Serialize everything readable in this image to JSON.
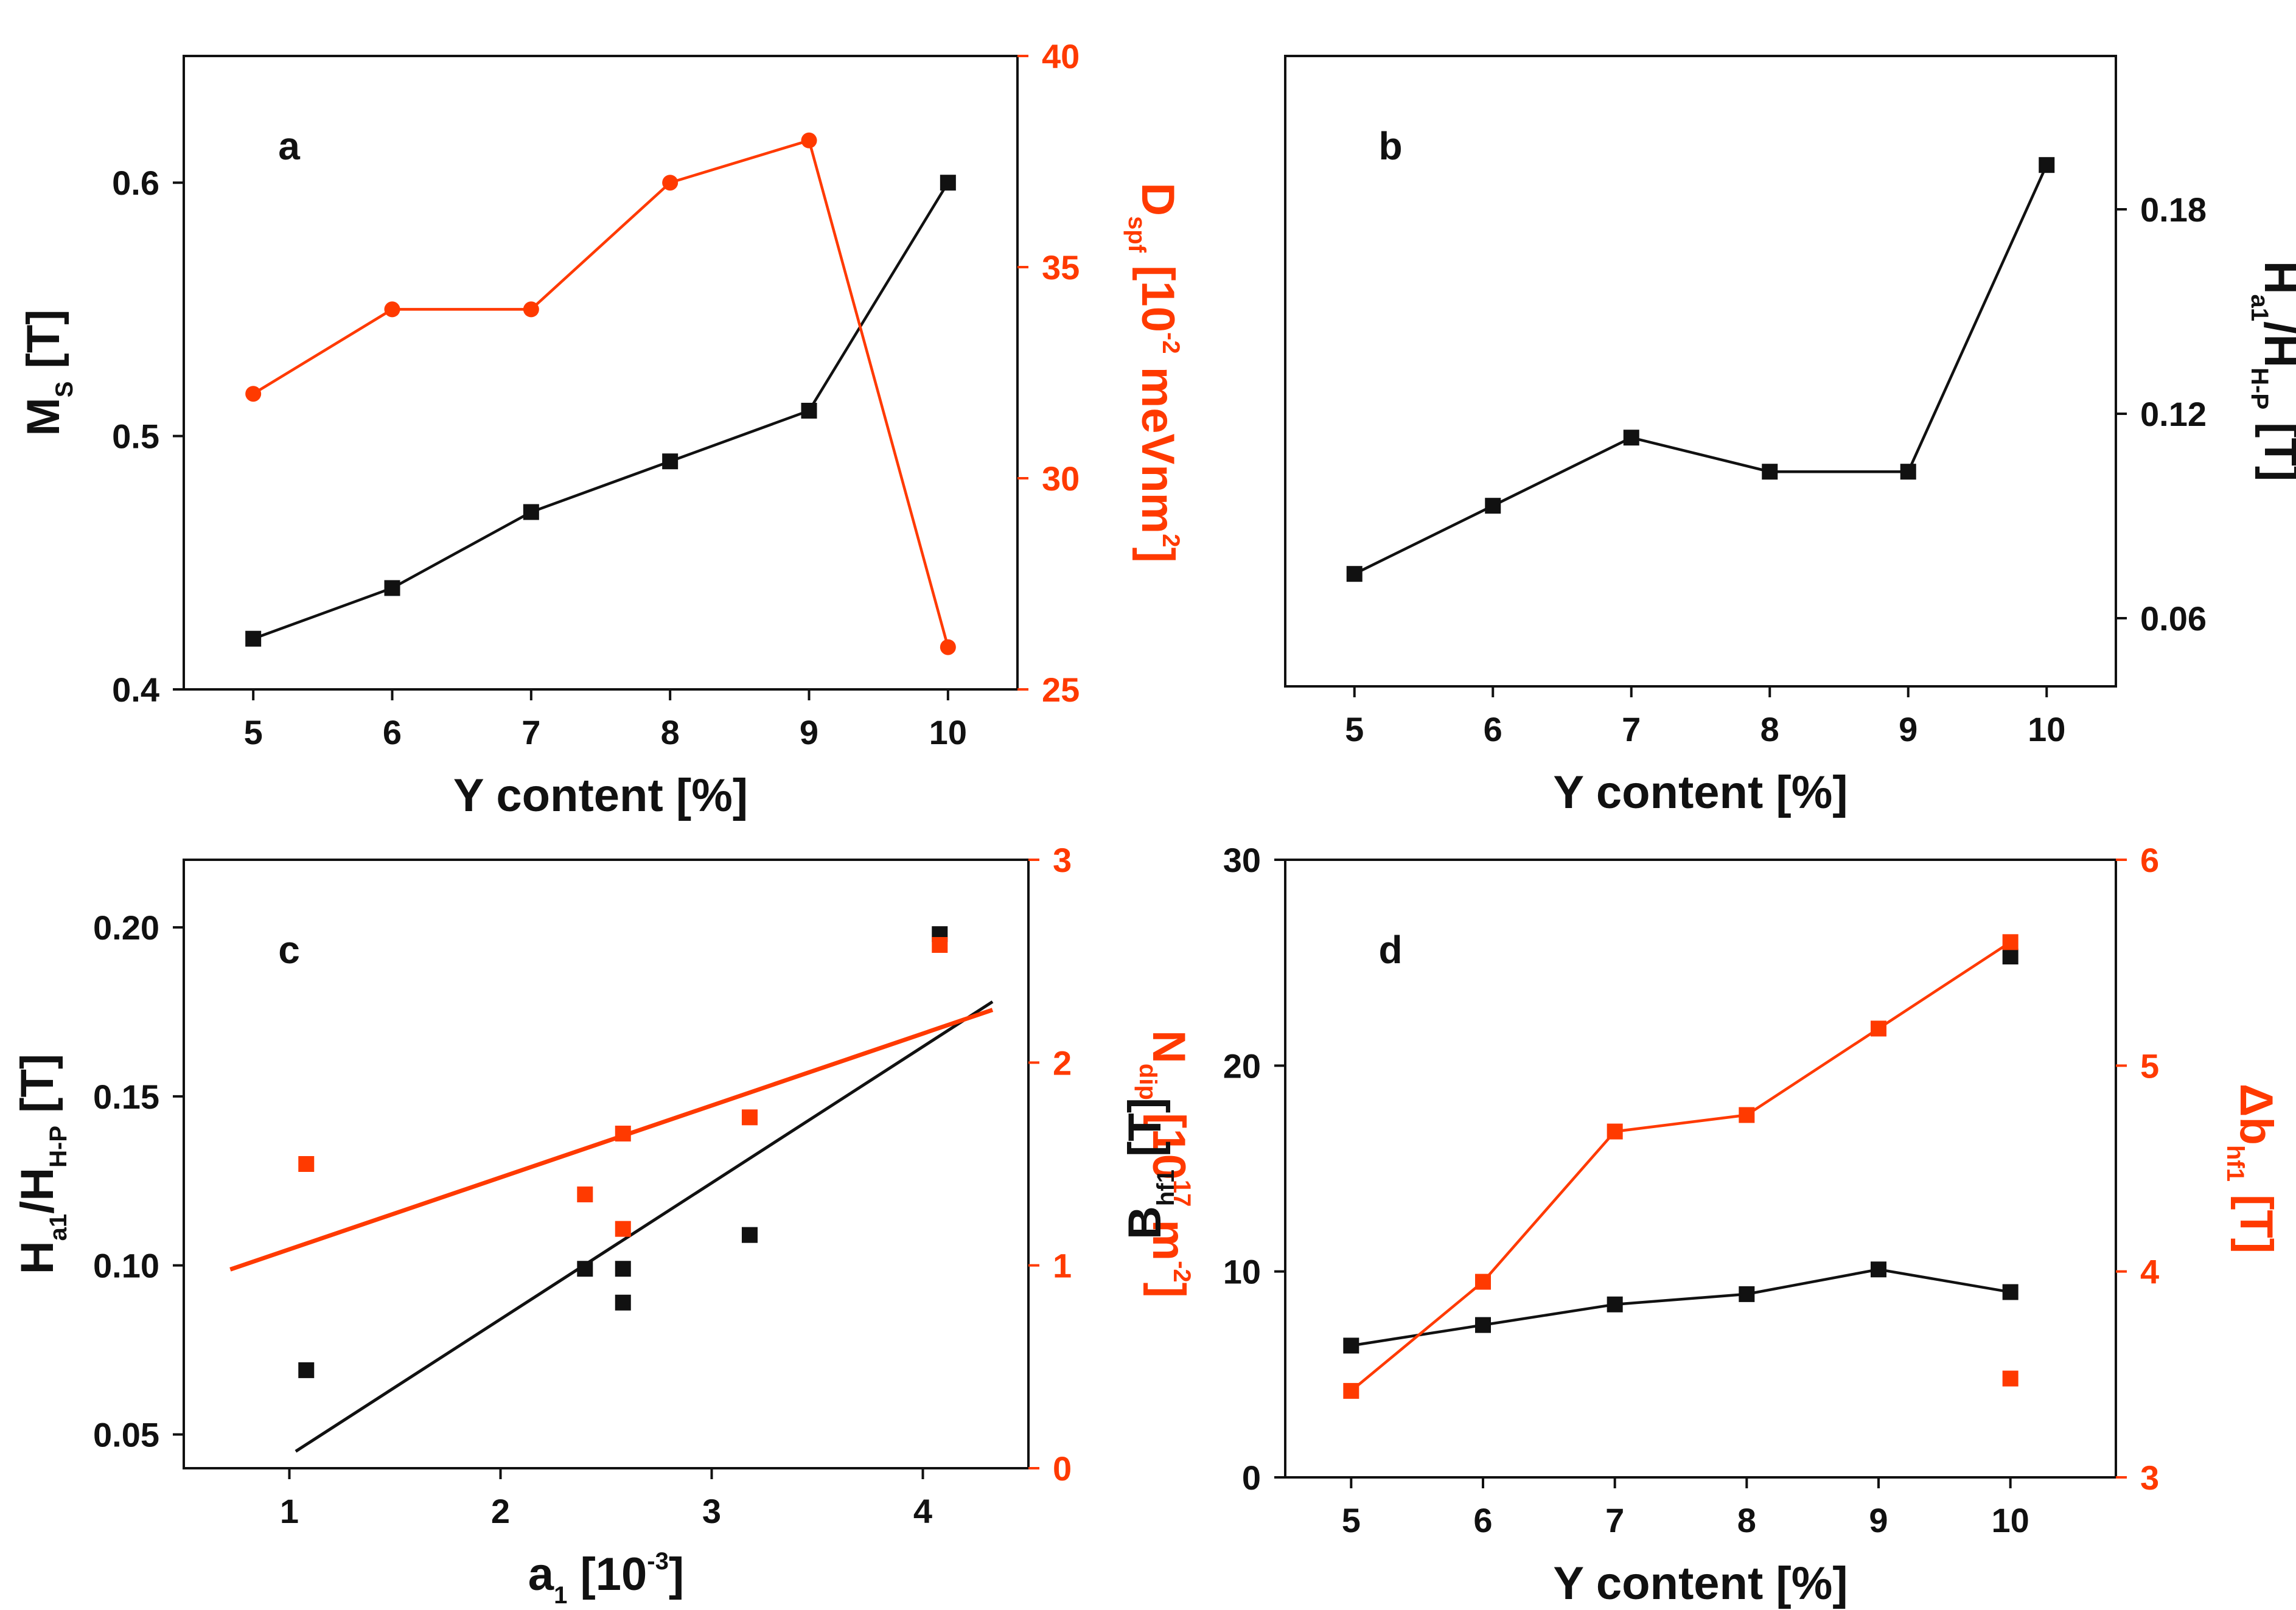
{
  "colors": {
    "black": "#111111",
    "red": "#ff3a00"
  },
  "chart_data": [
    {
      "id": "a",
      "type": "line",
      "panel_label": "a",
      "x": [
        5,
        6,
        7,
        8,
        9,
        10
      ],
      "xlim": [
        4.5,
        10.5
      ],
      "xticks": [
        "5",
        "6",
        "7",
        "8",
        "9",
        "10"
      ],
      "xlabel": "Y content [%]",
      "ylim": [
        0.4,
        0.65
      ],
      "yticks": [
        "0.4",
        "0.5",
        "0.6"
      ],
      "ylabel": {
        "base": "M",
        "sub": "S",
        "rest": " [T]"
      },
      "y2lim": [
        25,
        40
      ],
      "y2ticks": [
        "25",
        "30",
        "35",
        "40"
      ],
      "y2label": {
        "base": "D",
        "sub": "spf",
        "mid": " [10",
        "sup": "-2",
        "tail": " meVnm",
        "sup2": "2",
        "end": "]"
      },
      "series": [
        {
          "name": "M_S",
          "axis": "left",
          "marker": "square",
          "line": true,
          "color": "#111111",
          "values": [
            0.42,
            0.44,
            0.47,
            0.49,
            0.51,
            0.6
          ]
        },
        {
          "name": "D_spf",
          "axis": "right",
          "marker": "circle",
          "line": true,
          "color": "#ff3a00",
          "values": [
            32,
            34,
            34,
            37,
            38,
            26
          ]
        }
      ]
    },
    {
      "id": "b",
      "type": "line",
      "panel_label": "b",
      "x": [
        5,
        6,
        7,
        8,
        9,
        10
      ],
      "xlim": [
        4.5,
        10.5
      ],
      "xticks": [
        "5",
        "6",
        "7",
        "8",
        "9",
        "10"
      ],
      "xlabel": "Y content [%]",
      "y2lim": [
        0.04,
        0.225
      ],
      "y2ticks": [
        "0.06",
        "0.12",
        "0.18"
      ],
      "y2label": {
        "base": "H",
        "sub": "a1",
        "mid": "/H",
        "sub2": "H-P",
        "end": " [T]"
      },
      "series": [
        {
          "name": "Ha1/HH-P",
          "axis": "right",
          "marker": "square",
          "line": true,
          "color": "#111111",
          "values": [
            0.073,
            0.093,
            0.113,
            0.103,
            0.103,
            0.193
          ]
        }
      ]
    },
    {
      "id": "c",
      "type": "scatter",
      "panel_label": "c",
      "xlim": [
        0.5,
        4.5
      ],
      "xticks": [
        "1",
        "2",
        "3",
        "4"
      ],
      "xlabel": {
        "base": "a",
        "sub": "1",
        "mid": " [10",
        "sup": "-3",
        "end": "]"
      },
      "ylim": [
        0.04,
        0.22
      ],
      "yticks": [
        "0.05",
        "0.10",
        "0.15",
        "0.20"
      ],
      "ylabel": {
        "base": "H",
        "sub": "a1",
        "mid": "/H",
        "sub2": "H-P",
        "end": " [T]"
      },
      "y2lim": [
        0,
        3
      ],
      "y2ticks": [
        "0",
        "1",
        "2",
        "3"
      ],
      "y2label": {
        "base": "N",
        "sub": "dip",
        "mid": " [10",
        "sup": "17",
        "tail": " m",
        "sup2": "-2",
        "end": "]"
      },
      "series": [
        {
          "name": "Ha1/HH-P",
          "axis": "left",
          "marker": "square",
          "line": false,
          "color": "#111111",
          "x": [
            1.08,
            2.4,
            2.58,
            2.58,
            3.18,
            4.08
          ],
          "values": [
            0.069,
            0.099,
            0.099,
            0.089,
            0.109,
            0.198
          ]
        },
        {
          "name": "N_dip",
          "axis": "right",
          "marker": "square",
          "line": false,
          "color": "#ff3a00",
          "x": [
            1.08,
            2.4,
            2.58,
            2.58,
            3.18,
            4.08
          ],
          "values": [
            1.5,
            1.35,
            1.65,
            1.18,
            1.73,
            2.58
          ]
        }
      ],
      "fits": [
        {
          "name": "black fit",
          "axis": "left",
          "color": "#111111",
          "x": [
            1.03,
            4.33
          ],
          "values": [
            0.045,
            0.178
          ]
        },
        {
          "name": "red fit",
          "axis": "right",
          "color": "#ff3a00",
          "x": [
            0.72,
            4.33
          ],
          "values": [
            0.98,
            2.26
          ]
        }
      ]
    },
    {
      "id": "d",
      "type": "line",
      "panel_label": "d",
      "x": [
        5,
        6,
        7,
        8,
        9,
        10
      ],
      "xlim": [
        4.5,
        10.8
      ],
      "xticks": [
        "5",
        "6",
        "7",
        "8",
        "9",
        "10"
      ],
      "xlabel": "Y content [%]",
      "ylim": [
        0,
        30
      ],
      "yticks": [
        "0",
        "10",
        "20",
        "30"
      ],
      "ylabel": {
        "base": "B",
        "sub": "hf1",
        "rest": " [T]"
      },
      "y2lim": [
        3,
        6
      ],
      "y2ticks": [
        "3",
        "4",
        "5",
        "6"
      ],
      "y2label": {
        "base": "Δb",
        "sub": "hf1",
        "rest": " [T]"
      },
      "series": [
        {
          "name": "B_hf1",
          "axis": "left",
          "marker": "square",
          "line": true,
          "color": "#111111",
          "x": [
            5,
            6,
            7,
            8,
            9,
            10
          ],
          "values": [
            6.4,
            7.4,
            8.4,
            8.9,
            10.1,
            9.0
          ],
          "extra": {
            "x": 10,
            "value": 25.3
          }
        },
        {
          "name": "delta_b_hf1",
          "axis": "right",
          "marker": "square",
          "line": true,
          "color": "#ff3a00",
          "x": [
            5,
            6,
            7,
            8,
            9,
            10
          ],
          "values": [
            3.42,
            3.95,
            4.68,
            4.76,
            5.18,
            5.6
          ],
          "extra": {
            "x": 10,
            "value": 3.48
          }
        }
      ]
    }
  ]
}
